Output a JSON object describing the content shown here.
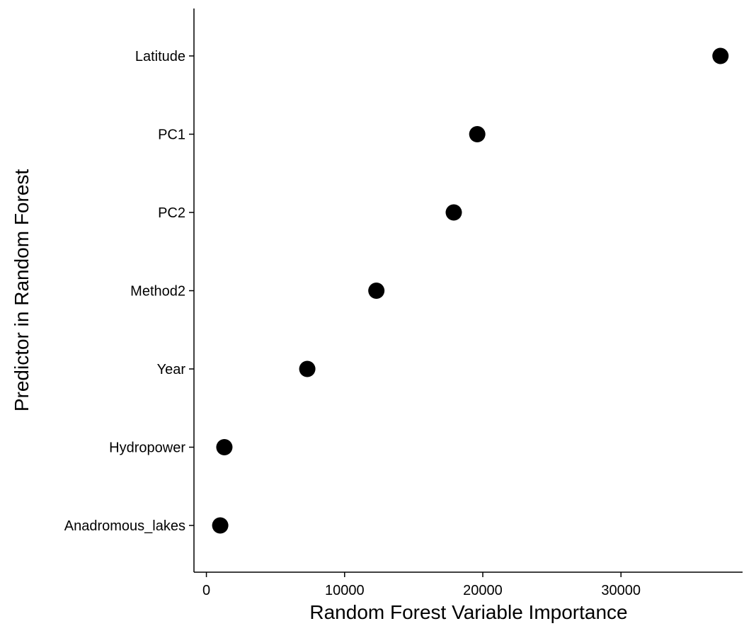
{
  "chart_data": {
    "type": "scatter",
    "title": "",
    "xlabel": "Random Forest Variable Importance",
    "ylabel": "Predictor in Random Forest",
    "categories": [
      "Latitude",
      "PC1",
      "PC2",
      "Method2",
      "Year",
      "Hydropower",
      "Anadromous_lakes"
    ],
    "values": [
      37200,
      19600,
      17900,
      12300,
      7300,
      1300,
      1000
    ],
    "xlim": [
      -900,
      38800
    ],
    "xticks": [
      0,
      10000,
      20000,
      30000
    ],
    "grid": false,
    "legend": "none",
    "point_color": "#000000"
  }
}
